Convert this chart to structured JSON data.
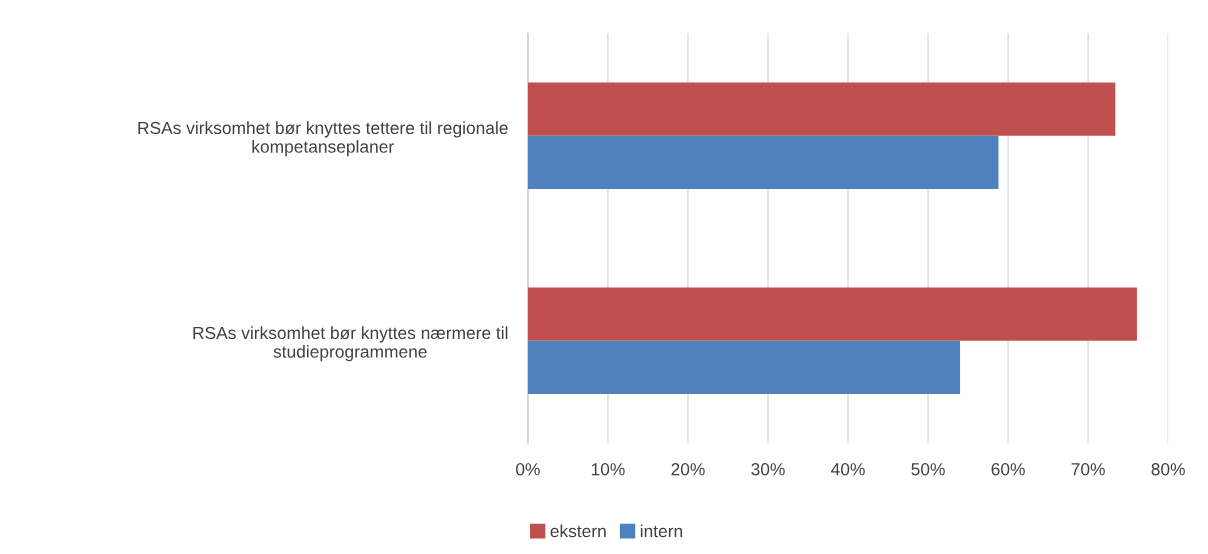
{
  "chart_data": {
    "type": "bar",
    "orientation": "horizontal",
    "categories": [
      "RSAs virksomhet bør knyttes tettere til regionale\nkompetanseplaner",
      "RSAs virksomhet bør knyttes nærmere til\nstudieprogrammene"
    ],
    "series": [
      {
        "name": "ekstern",
        "color": "#c0504d",
        "values": [
          73.4,
          76.1
        ]
      },
      {
        "name": "intern",
        "color": "#4f81bd",
        "values": [
          58.8,
          54.0
        ]
      }
    ],
    "xlim": [
      0,
      80
    ],
    "xticks": [
      {
        "value": 0,
        "label": "0%"
      },
      {
        "value": 10,
        "label": "10%"
      },
      {
        "value": 20,
        "label": "20%"
      },
      {
        "value": 30,
        "label": "30%"
      },
      {
        "value": 40,
        "label": "40%"
      },
      {
        "value": 50,
        "label": "50%"
      },
      {
        "value": 60,
        "label": "60%"
      },
      {
        "value": 70,
        "label": "70%"
      },
      {
        "value": 80,
        "label": "80%"
      }
    ],
    "grid": "x",
    "legend": "bottom"
  }
}
